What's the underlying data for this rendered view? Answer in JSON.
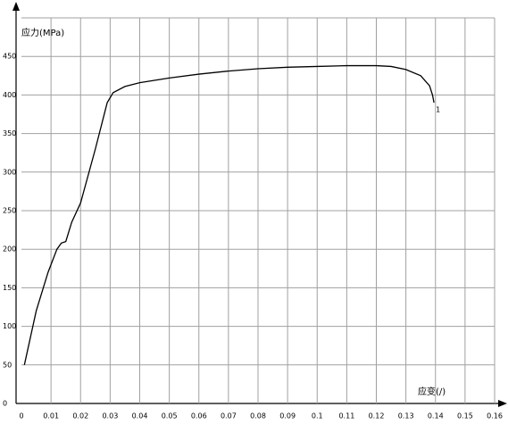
{
  "chart_data": {
    "type": "line",
    "y_label": "应力(MPa)",
    "x_label": "应变(/)",
    "annotation": "1",
    "x": [
      0.001,
      0.005,
      0.009,
      0.012,
      0.0135,
      0.015,
      0.017,
      0.02,
      0.025,
      0.029,
      0.031,
      0.035,
      0.04,
      0.05,
      0.06,
      0.07,
      0.08,
      0.09,
      0.1,
      0.11,
      0.12,
      0.125,
      0.13,
      0.135,
      0.138,
      0.139,
      0.1395
    ],
    "series": [
      {
        "color": "#000000",
        "values": [
          50,
          120,
          170,
          200,
          208,
          210,
          235,
          260,
          330,
          390,
          403,
          411,
          416,
          422,
          427,
          431,
          434,
          436,
          437,
          438,
          438,
          437,
          433,
          425,
          412,
          400,
          390
        ]
      }
    ],
    "xlim": [
      0,
      0.16
    ],
    "ylim": [
      0,
      500
    ],
    "xticks": [
      0,
      0.01,
      0.02,
      0.03,
      0.04,
      0.05,
      0.06,
      0.07,
      0.08,
      0.09,
      0.1,
      0.11,
      0.12,
      0.13,
      0.14,
      0.15,
      0.16
    ],
    "yticks": [
      0,
      50,
      100,
      150,
      200,
      250,
      300,
      350,
      400,
      450
    ],
    "grid": true
  }
}
